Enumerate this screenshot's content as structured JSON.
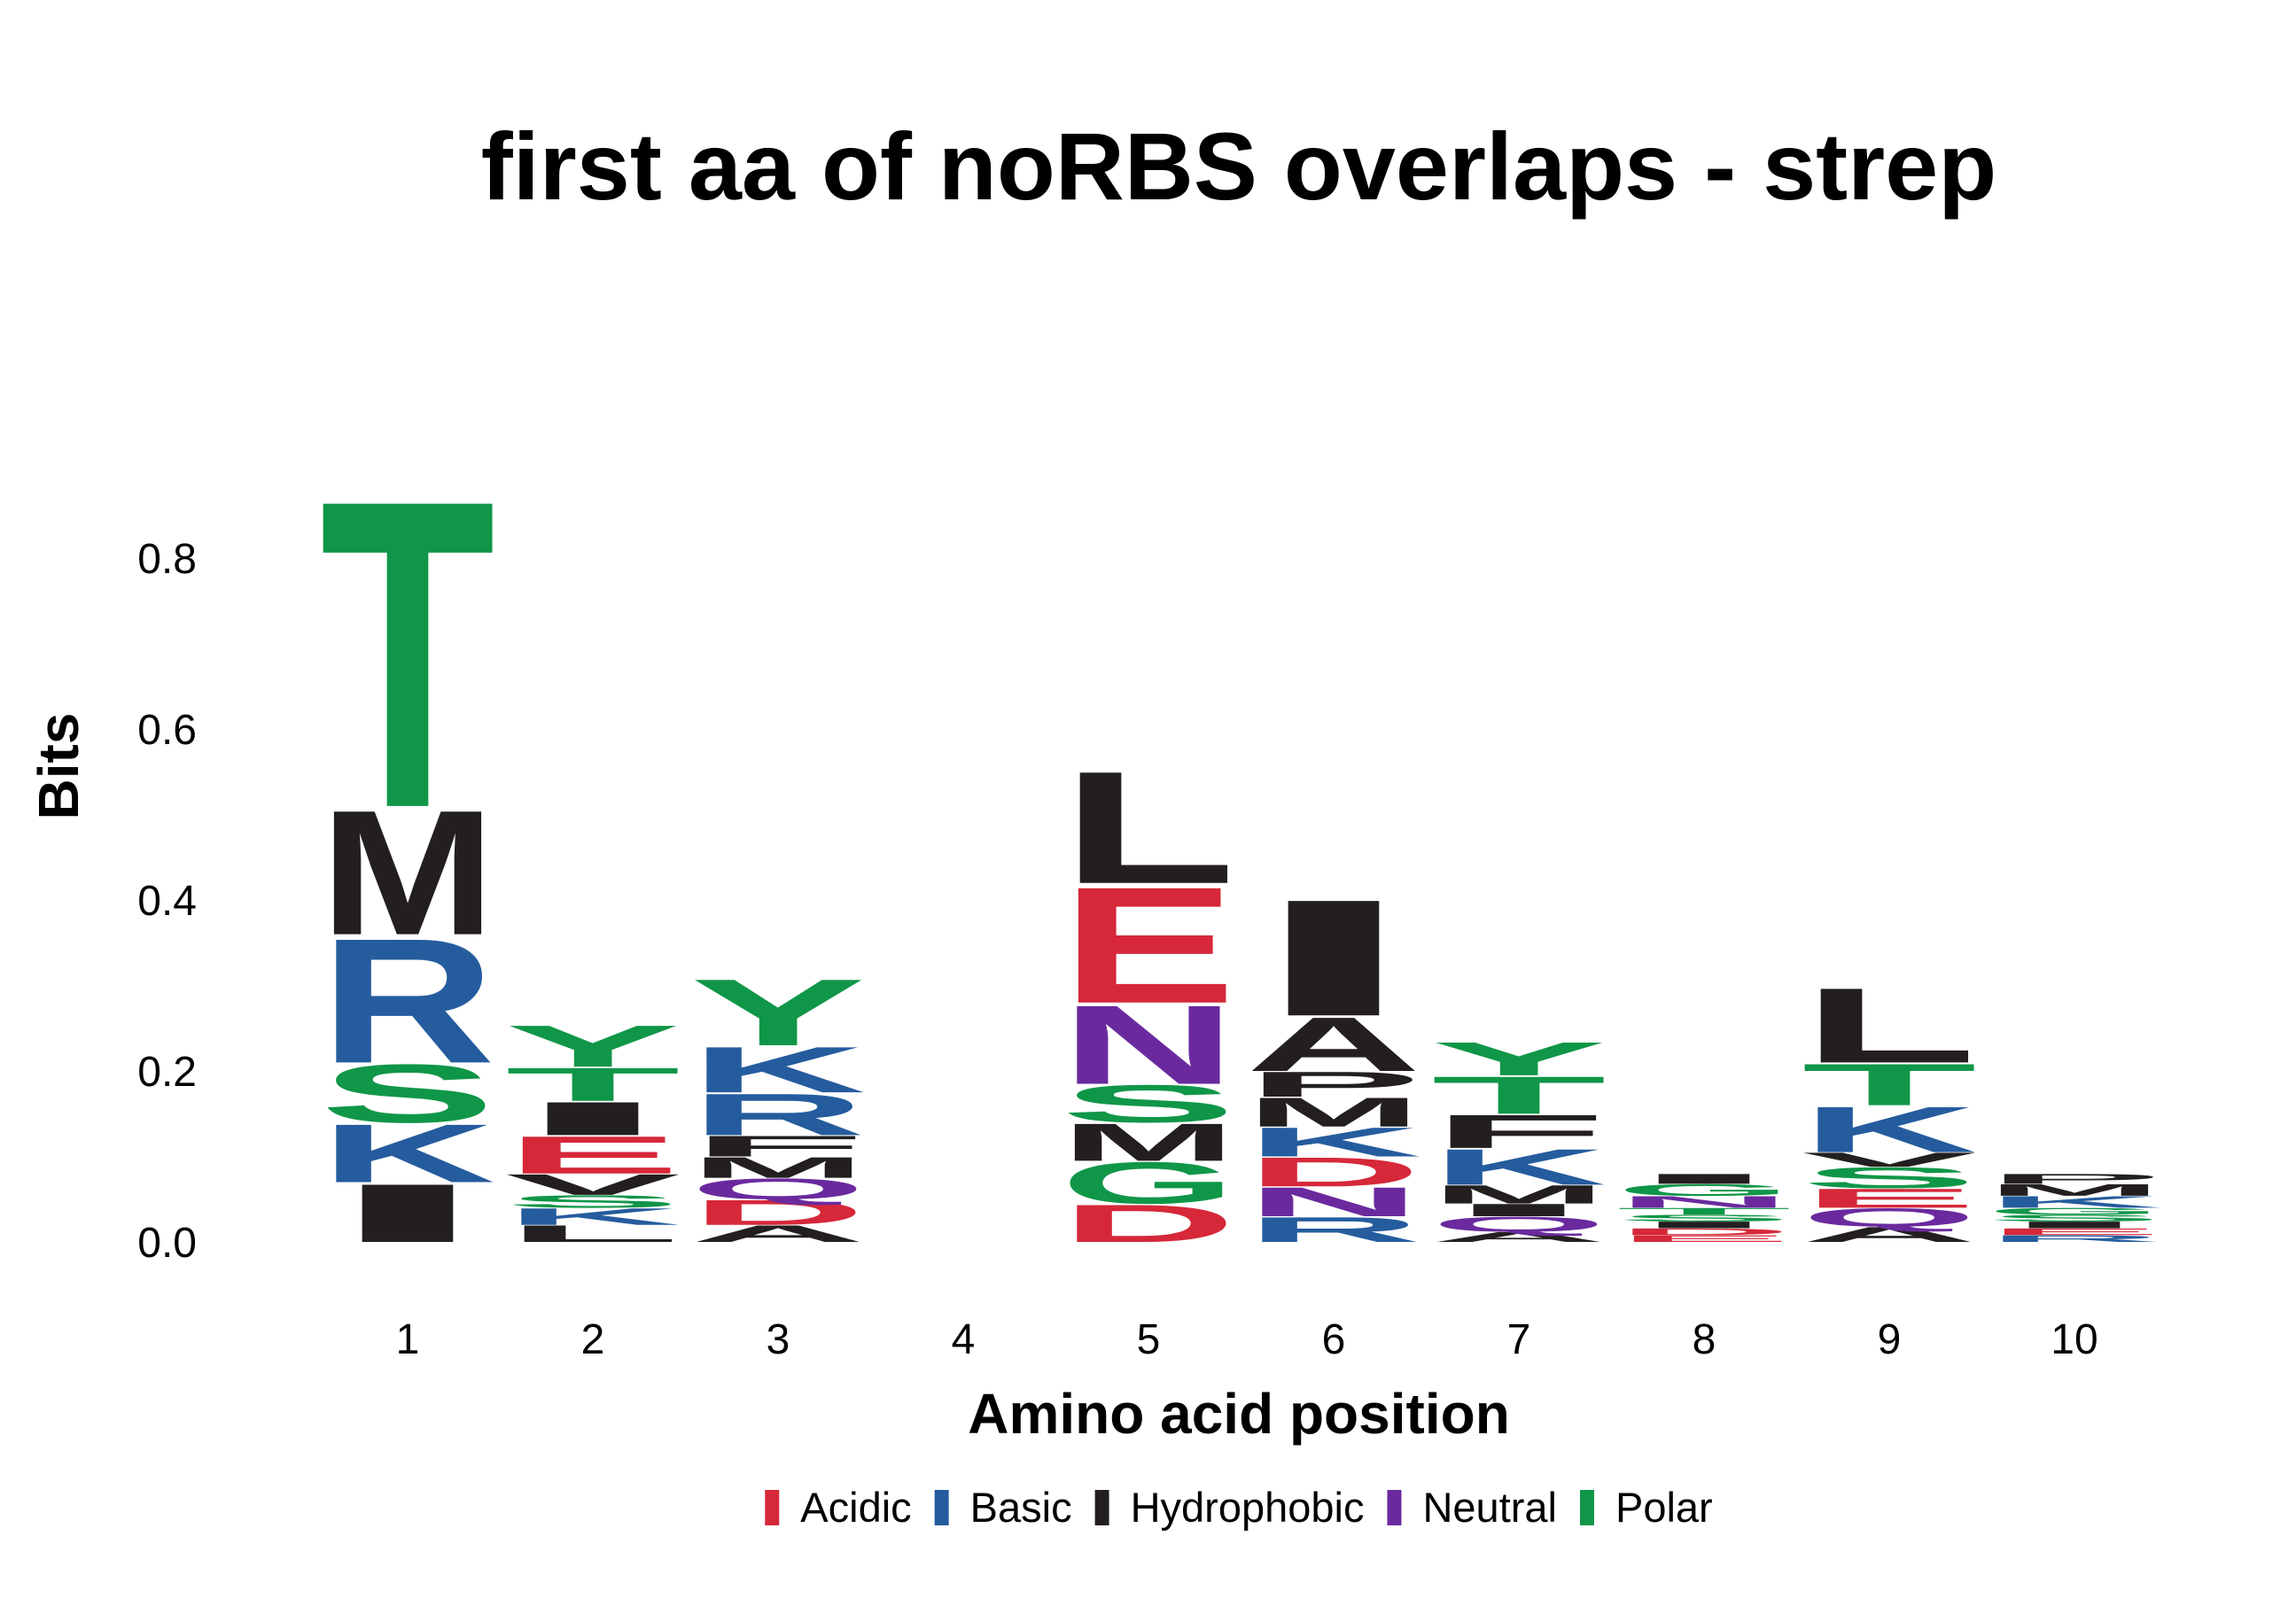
{
  "chart_data": {
    "type": "sequence-logo",
    "title": "first aa of noRBS overlaps - strep",
    "xlabel": "Amino acid position",
    "ylabel": "Bits",
    "ylim": [
      0,
      0.9
    ],
    "yticks": [
      {
        "value": 0.0,
        "label": "0.0"
      },
      {
        "value": 0.2,
        "label": "0.2"
      },
      {
        "value": 0.4,
        "label": "0.4"
      },
      {
        "value": 0.6,
        "label": "0.6"
      },
      {
        "value": 0.8,
        "label": "0.8"
      }
    ],
    "positions": [
      "1",
      "2",
      "3",
      "4",
      "5",
      "6",
      "7",
      "8",
      "9",
      "10"
    ],
    "groups": [
      {
        "name": "Acidic",
        "color": "#d62839"
      },
      {
        "name": "Basic",
        "color": "#255c9e"
      },
      {
        "name": "Hydrophobic",
        "color": "#231f20"
      },
      {
        "name": "Neutral",
        "color": "#6a2a9e"
      },
      {
        "name": "Polar",
        "color": "#109648"
      }
    ],
    "residue_group": {
      "D": "Acidic",
      "E": "Acidic",
      "K": "Basic",
      "R": "Basic",
      "H": "Basic",
      "A": "Hydrophobic",
      "V": "Hydrophobic",
      "L": "Hydrophobic",
      "I": "Hydrophobic",
      "P": "Hydrophobic",
      "W": "Hydrophobic",
      "F": "Hydrophobic",
      "M": "Hydrophobic",
      "Q": "Neutral",
      "N": "Neutral",
      "S": "Polar",
      "G": "Polar",
      "T": "Polar",
      "Y": "Polar",
      "C": "Polar"
    },
    "stacks": [
      {
        "position": "1",
        "letters": [
          {
            "aa": "I",
            "bits": 0.07
          },
          {
            "aa": "K",
            "bits": 0.07
          },
          {
            "aa": "S",
            "bits": 0.07
          },
          {
            "aa": "R",
            "bits": 0.15
          },
          {
            "aa": "M",
            "bits": 0.15
          },
          {
            "aa": "T",
            "bits": 0.37
          }
        ]
      },
      {
        "position": "2",
        "letters": [
          {
            "aa": "L",
            "bits": 0.02
          },
          {
            "aa": "K",
            "bits": 0.02
          },
          {
            "aa": "S",
            "bits": 0.015
          },
          {
            "aa": "V",
            "bits": 0.025
          },
          {
            "aa": "E",
            "bits": 0.045
          },
          {
            "aa": "I",
            "bits": 0.04
          },
          {
            "aa": "T",
            "bits": 0.04
          },
          {
            "aa": "Y",
            "bits": 0.05
          }
        ]
      },
      {
        "position": "3",
        "letters": [
          {
            "aa": "A",
            "bits": 0.02
          },
          {
            "aa": "D",
            "bits": 0.03
          },
          {
            "aa": "Q",
            "bits": 0.025
          },
          {
            "aa": "M",
            "bits": 0.025
          },
          {
            "aa": "F",
            "bits": 0.025
          },
          {
            "aa": "R",
            "bits": 0.05
          },
          {
            "aa": "K",
            "bits": 0.055
          },
          {
            "aa": "Y",
            "bits": 0.08
          }
        ]
      },
      {
        "position": "4",
        "letters": []
      },
      {
        "position": "5",
        "letters": [
          {
            "aa": "D",
            "bits": 0.045
          },
          {
            "aa": "G",
            "bits": 0.05
          },
          {
            "aa": "M",
            "bits": 0.045
          },
          {
            "aa": "S",
            "bits": 0.045
          },
          {
            "aa": "N",
            "bits": 0.095
          },
          {
            "aa": "E",
            "bits": 0.14
          },
          {
            "aa": "L",
            "bits": 0.135
          }
        ]
      },
      {
        "position": "6",
        "letters": [
          {
            "aa": "R",
            "bits": 0.03
          },
          {
            "aa": "N",
            "bits": 0.035
          },
          {
            "aa": "D",
            "bits": 0.035
          },
          {
            "aa": "K",
            "bits": 0.035
          },
          {
            "aa": "M",
            "bits": 0.035
          },
          {
            "aa": "P",
            "bits": 0.03
          },
          {
            "aa": "A",
            "bits": 0.065
          },
          {
            "aa": "I",
            "bits": 0.14
          }
        ]
      },
      {
        "position": "7",
        "letters": [
          {
            "aa": "A",
            "bits": 0.012
          },
          {
            "aa": "Q",
            "bits": 0.018
          },
          {
            "aa": "I",
            "bits": 0.015
          },
          {
            "aa": "M",
            "bits": 0.022
          },
          {
            "aa": "K",
            "bits": 0.043
          },
          {
            "aa": "F",
            "bits": 0.04
          },
          {
            "aa": "T",
            "bits": 0.045
          },
          {
            "aa": "Y",
            "bits": 0.04
          }
        ]
      },
      {
        "position": "8",
        "letters": [
          {
            "aa": "E",
            "bits": 0.008
          },
          {
            "aa": "D",
            "bits": 0.008
          },
          {
            "aa": "I",
            "bits": 0.008
          },
          {
            "aa": "S",
            "bits": 0.008
          },
          {
            "aa": "T",
            "bits": 0.008
          },
          {
            "aa": "N",
            "bits": 0.014
          },
          {
            "aa": "G",
            "bits": 0.014
          },
          {
            "aa": "I",
            "bits": 0.012
          }
        ]
      },
      {
        "position": "9",
        "letters": [
          {
            "aa": "A",
            "bits": 0.018
          },
          {
            "aa": "Q",
            "bits": 0.022
          },
          {
            "aa": "E",
            "bits": 0.023
          },
          {
            "aa": "S",
            "bits": 0.025
          },
          {
            "aa": "V",
            "bits": 0.017
          },
          {
            "aa": "K",
            "bits": 0.055
          },
          {
            "aa": "T",
            "bits": 0.05
          },
          {
            "aa": "L",
            "bits": 0.09
          }
        ]
      },
      {
        "position": "10",
        "letters": [
          {
            "aa": "R",
            "bits": 0.008
          },
          {
            "aa": "E",
            "bits": 0.008
          },
          {
            "aa": "I",
            "bits": 0.008
          },
          {
            "aa": "S",
            "bits": 0.008
          },
          {
            "aa": "G",
            "bits": 0.008
          },
          {
            "aa": "K",
            "bits": 0.014
          },
          {
            "aa": "M",
            "bits": 0.014
          },
          {
            "aa": "P",
            "bits": 0.012
          }
        ]
      }
    ],
    "legend": {
      "placement": "bottom",
      "entries": [
        "Acidic",
        "Basic",
        "Hydrophobic",
        "Neutral",
        "Polar"
      ]
    },
    "grid": false
  }
}
